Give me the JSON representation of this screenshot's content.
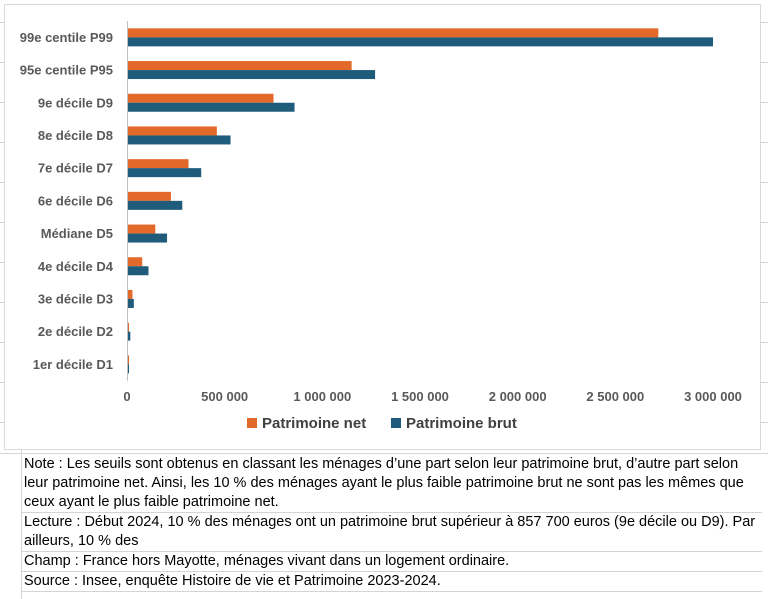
{
  "colors": {
    "net": "#E2692A",
    "brut": "#1F5B7A",
    "axis": "#bfbfbf",
    "grid": "#d9d9d9"
  },
  "chart_data": {
    "type": "bar",
    "orientation": "horizontal",
    "categories": [
      "99e centile P99",
      "95e centile P95",
      "9e décile D9",
      "8e décile D8",
      "7e décile D7",
      "6e décile D6",
      "Médiane D5",
      "4e décile D4",
      "3e décile D3",
      "2e décile D2",
      "1er décile D1"
    ],
    "series": [
      {
        "name": "Patrimoine net",
        "color": "#E2692A",
        "values": [
          2720000,
          1150000,
          750000,
          460000,
          315000,
          225000,
          145000,
          78000,
          28000,
          8000,
          4000
        ]
      },
      {
        "name": "Patrimoine brut",
        "color": "#1F5B7A",
        "values": [
          3000000,
          1270000,
          857700,
          530000,
          380000,
          283000,
          205000,
          110000,
          35000,
          17000,
          6000
        ]
      }
    ],
    "xlim": [
      0,
      3000000
    ],
    "xticks": [
      0,
      500000,
      1000000,
      1500000,
      2000000,
      2500000,
      3000000
    ],
    "xtick_labels": [
      "0",
      "500 000",
      "1 000 000",
      "1 500 000",
      "2 000 000",
      "2 500 000",
      "3 000 000"
    ],
    "legend_position": "bottom",
    "grid": false
  },
  "notes": {
    "note": "Note : Les seuils sont obtenus en classant les ménages d’une part selon leur patrimoine brut, d’autre part selon leur patrimoine net. Ainsi, les 10 % des ménages ayant le plus faible patrimoine brut ne sont pas les mêmes que ceux ayant le plus faible patrimoine net.",
    "lecture": "Lecture : Début 2024, 10 % des ménages ont un patrimoine brut supérieur à 857 700 euros (9e décile ou D9). Par ailleurs, 10 % des",
    "champ": "Champ : France hors Mayotte, ménages vivant dans un logement ordinaire.",
    "source": "Source : Insee, enquête Histoire de vie et Patrimoine 2023-2024."
  }
}
